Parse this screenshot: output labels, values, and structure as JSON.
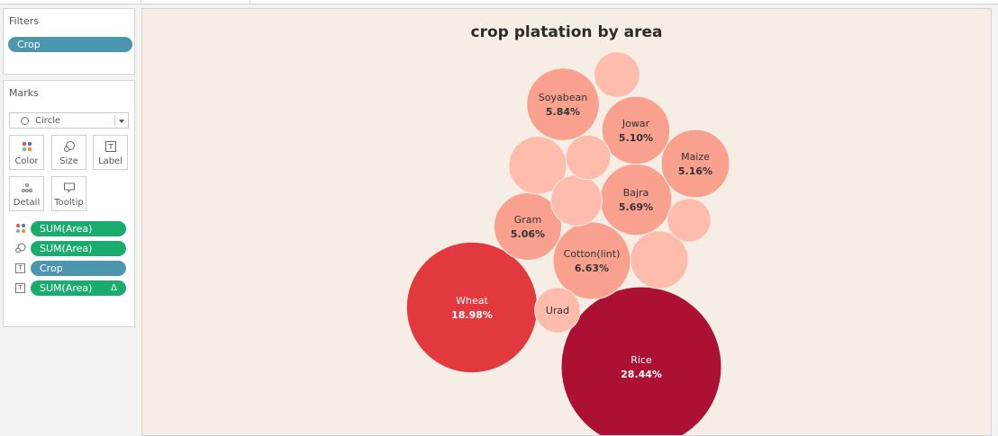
{
  "filters": {
    "title": "Filters",
    "pills": [
      "Crop"
    ]
  },
  "marks": {
    "title": "Marks",
    "mark_type": "Circle",
    "buttons": {
      "color": "Color",
      "size": "Size",
      "label": "Label",
      "detail": "Detail",
      "tooltip": "Tooltip"
    },
    "shelf": [
      {
        "icon": "color-icon",
        "label": "SUM(Area)",
        "kind": "measure"
      },
      {
        "icon": "size-icon",
        "label": "SUM(Area)",
        "kind": "measure"
      },
      {
        "icon": "text-icon",
        "label": "Crop",
        "kind": "dimension"
      },
      {
        "icon": "text-icon",
        "label": "SUM(Area)",
        "kind": "measure",
        "table_calc_glyph": "Δ"
      }
    ]
  },
  "colors": {
    "light": "#fdbcac",
    "mid": "#f9a08e",
    "wheat": "#e2393f",
    "rice": "#ac1035",
    "filter_pill": "#4c96b0",
    "measure_pill": "#1aab6e"
  },
  "chart_data": {
    "type": "packed-bubble",
    "title": "crop platation by area",
    "measure": "% of total SUM(Area)",
    "bubbles": [
      {
        "label": "Rice",
        "value_label": "28.44%",
        "value": 28.44,
        "color": "#ac1035"
      },
      {
        "label": "Wheat",
        "value_label": "18.98%",
        "value": 18.98,
        "color": "#e2393f"
      },
      {
        "label": "Cotton(lint)",
        "value_label": "6.63%",
        "value": 6.63,
        "color": "#f9a08e"
      },
      {
        "label": "Soyabean",
        "value_label": "5.84%",
        "value": 5.84,
        "color": "#f9a08e"
      },
      {
        "label": "Bajra",
        "value_label": "5.69%",
        "value": 5.69,
        "color": "#f9a08e"
      },
      {
        "label": "Maize",
        "value_label": "5.16%",
        "value": 5.16,
        "color": "#f9a08e"
      },
      {
        "label": "Jowar",
        "value_label": "5.10%",
        "value": 5.1,
        "color": "#f9a08e"
      },
      {
        "label": "Gram",
        "value_label": "5.06%",
        "value": 5.06,
        "color": "#f9a08e"
      },
      {
        "label": "Urad",
        "value_label": "",
        "value": 2.3,
        "color": "#fdbcac"
      },
      {
        "label": "",
        "value_label": "",
        "value": 3.7,
        "color": "#fdbcac"
      },
      {
        "label": "",
        "value_label": "",
        "value": 3.7,
        "color": "#fdbcac"
      },
      {
        "label": "",
        "value_label": "",
        "value": 2.9,
        "color": "#fdbcac"
      },
      {
        "label": "",
        "value_label": "",
        "value": 2.3,
        "color": "#fdbcac"
      },
      {
        "label": "",
        "value_label": "",
        "value": 2.2,
        "color": "#fdbcac"
      },
      {
        "label": "",
        "value_label": "",
        "value": 2.1,
        "color": "#fdbcac"
      }
    ]
  }
}
